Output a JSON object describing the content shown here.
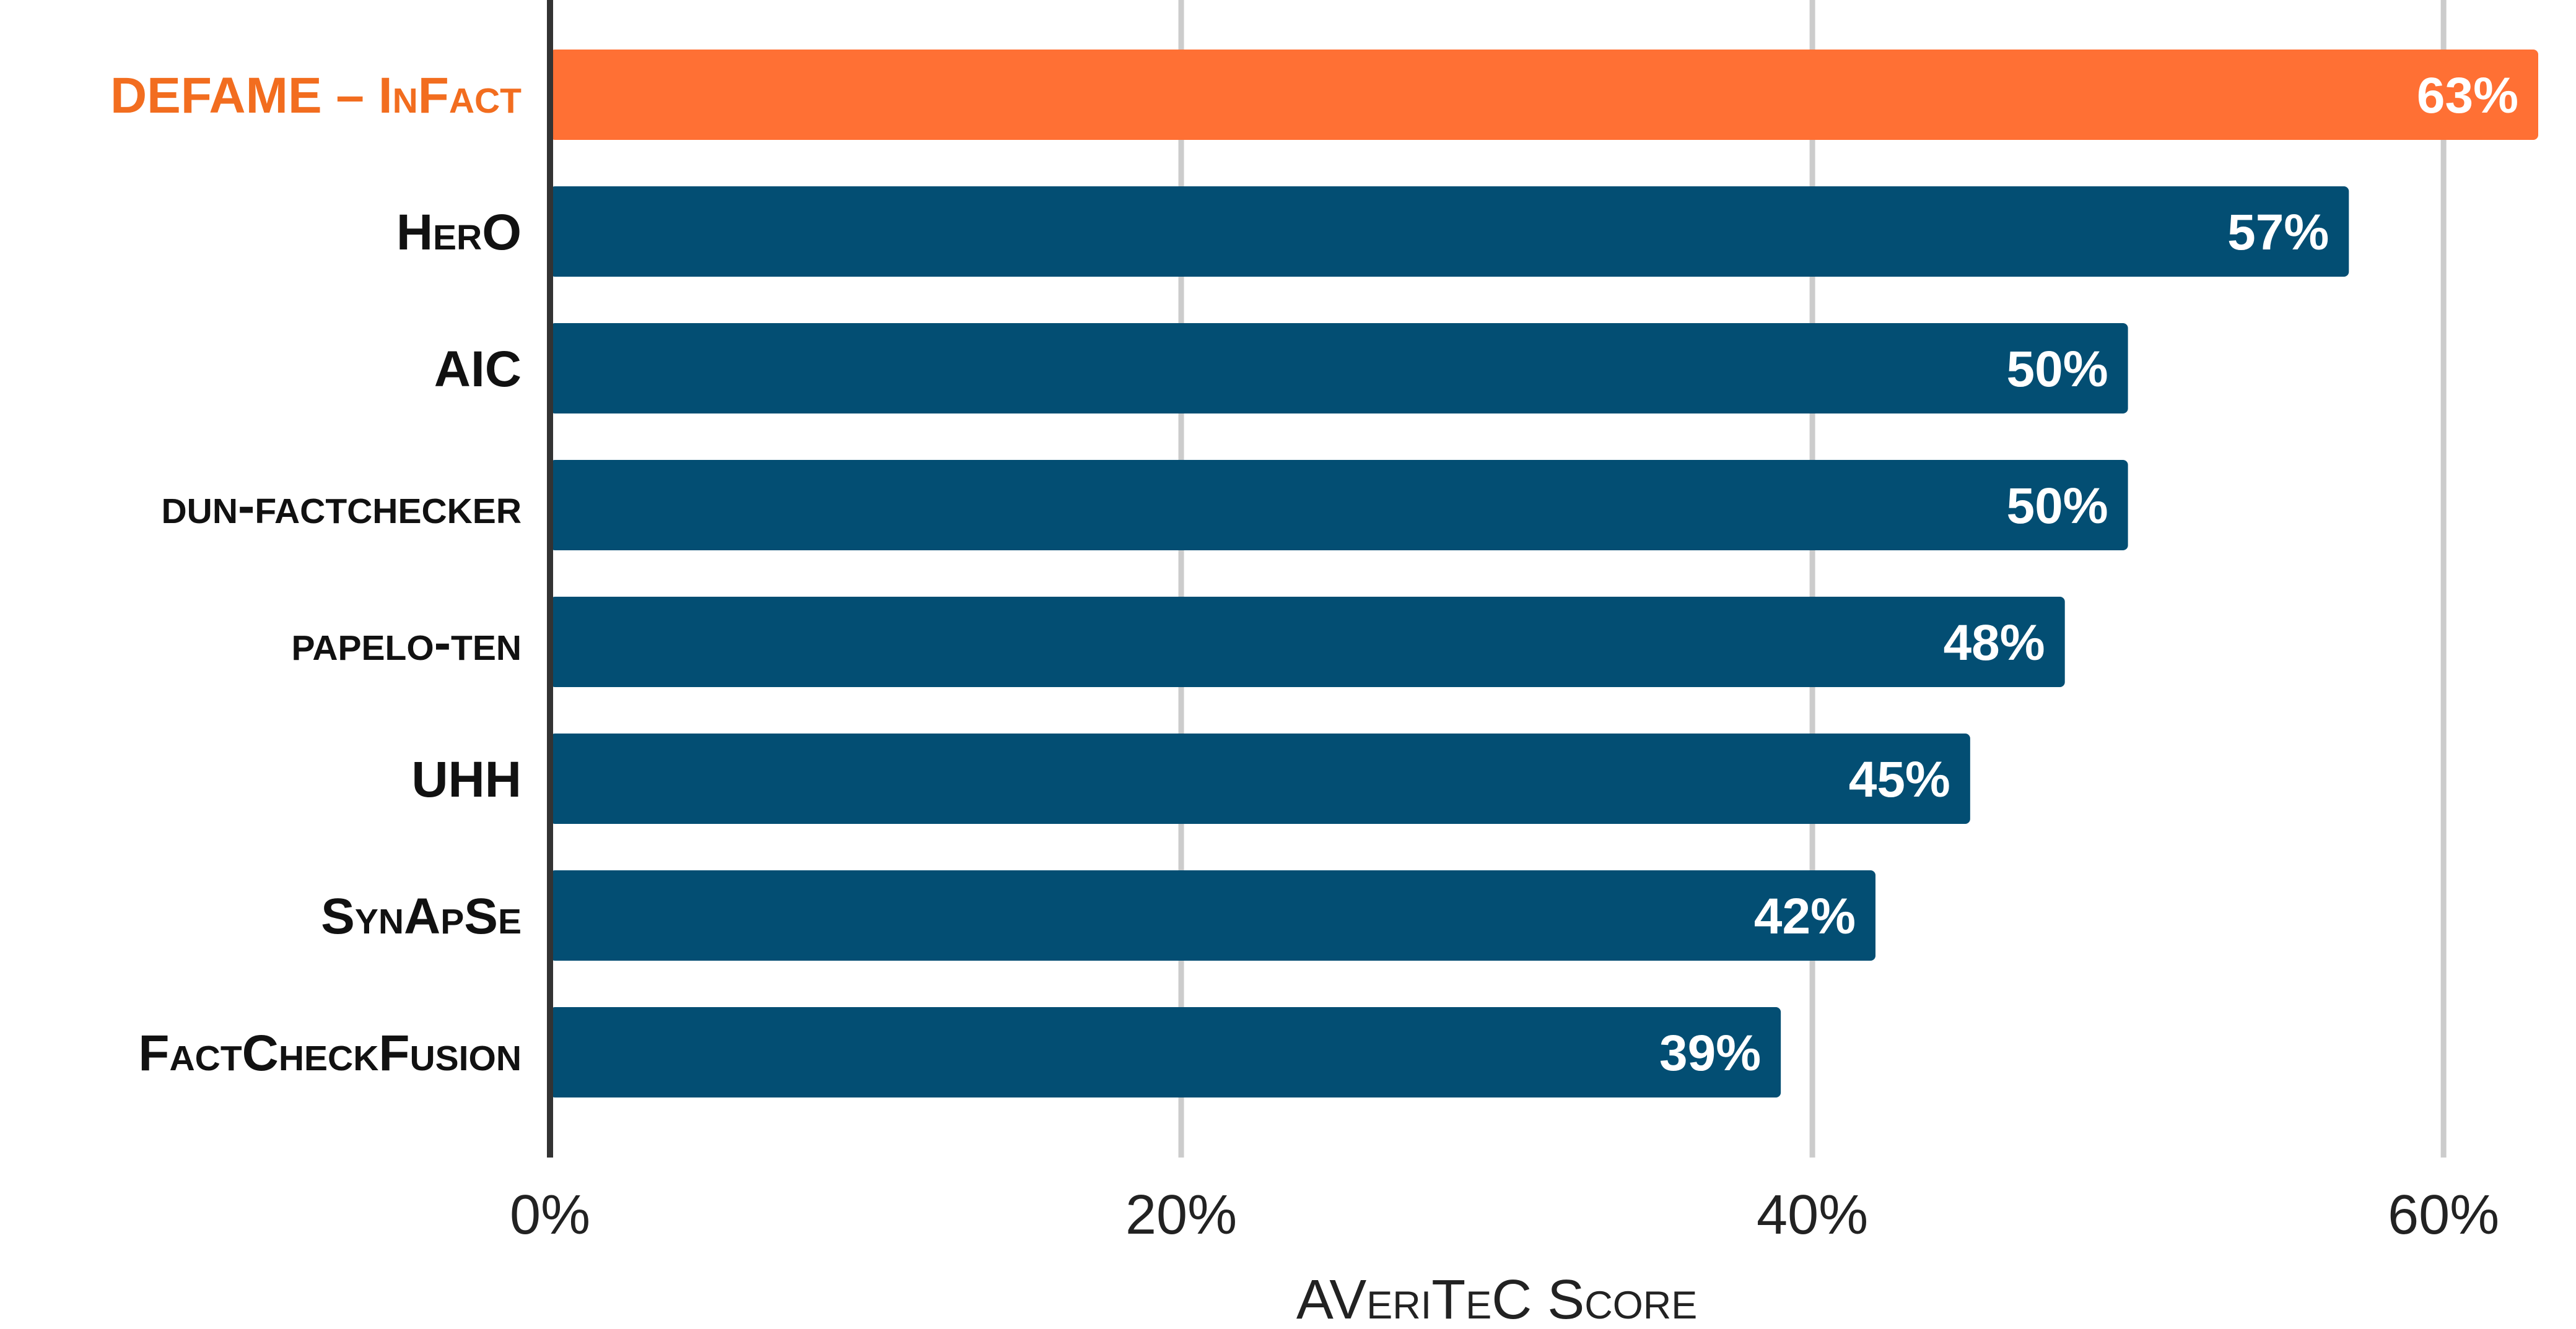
{
  "chart_data": {
    "type": "bar",
    "orientation": "horizontal",
    "categories": [
      "DEFAME – InFact",
      "HerO",
      "AIC",
      "dun-factchecker",
      "papelo-ten",
      "UHH",
      "SynApSe",
      "FactCheckFusion"
    ],
    "values": [
      63,
      57,
      50,
      50,
      48,
      45,
      42,
      39
    ],
    "value_labels": [
      "63%",
      "57%",
      "50%",
      "50%",
      "48%",
      "45%",
      "42%",
      "39%"
    ],
    "highlight_index": 0,
    "xlabel": "AVeriTeC Score",
    "ylabel": "",
    "title": "",
    "xlim": [
      0,
      63
    ],
    "xticks": [
      0,
      20,
      40,
      60
    ],
    "xtick_labels": [
      "0%",
      "20%",
      "40%",
      "60%"
    ],
    "grid": "vertical",
    "legend": "none"
  },
  "colors": {
    "bar": "#034e73",
    "highlight_bar": "#ff7034",
    "highlight_label": "#f26d1f",
    "label": "#111111",
    "grid": "#cccccc",
    "axis": "#333333"
  }
}
